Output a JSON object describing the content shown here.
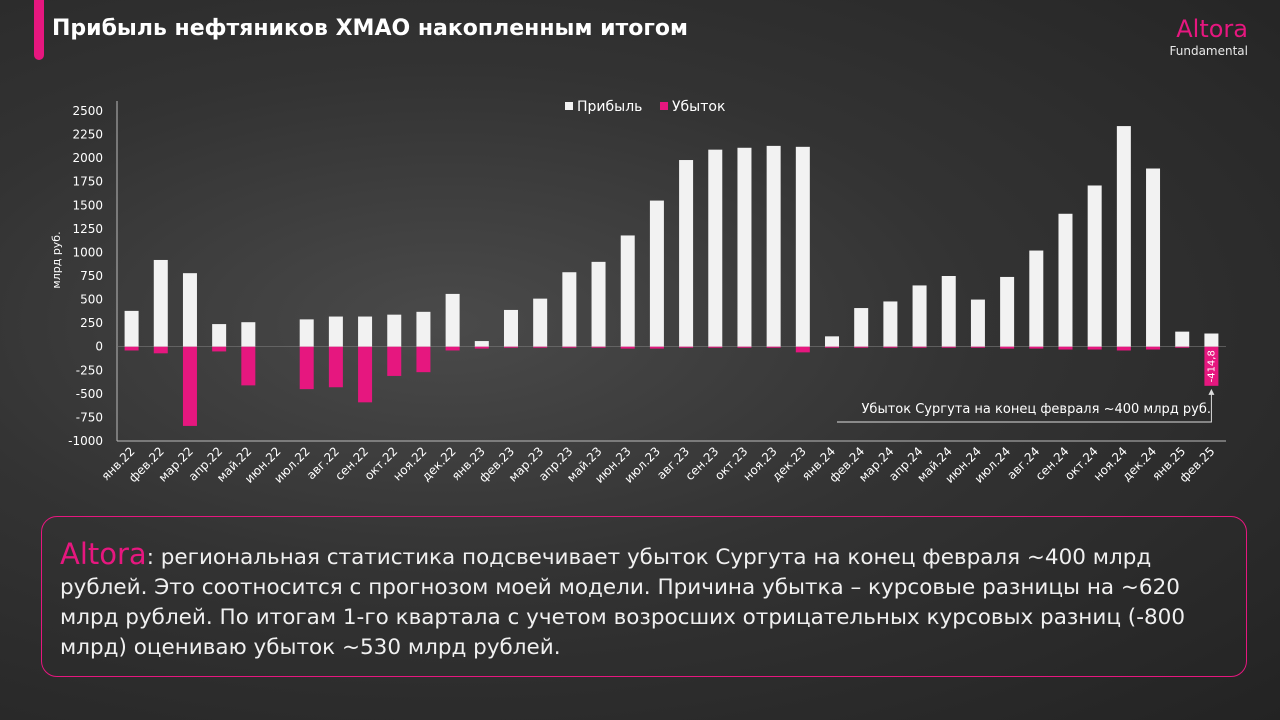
{
  "header": {
    "title": "Прибыль нефтяников ХМАО накопленным итогом",
    "brand": "Altora",
    "brand_sub": "Fundamental"
  },
  "colors": {
    "accent": "#e6177f",
    "profit": "#f2f2f2",
    "background": "#2b2b2b"
  },
  "chart_data": {
    "type": "bar",
    "ylabel": "млрд руб.",
    "ylim": [
      -1000,
      2500
    ],
    "yticks": [
      2500,
      2250,
      2000,
      1750,
      1500,
      1250,
      1000,
      750,
      500,
      250,
      0,
      -250,
      -500,
      -750,
      -1000
    ],
    "legend_position": "top",
    "categories": [
      "янв.22",
      "фев.22",
      "мар.22",
      "апр.22",
      "май.22",
      "июн.22",
      "июл.22",
      "авг.22",
      "сен.22",
      "окт.22",
      "ноя.22",
      "дек.22",
      "янв.23",
      "фев.23",
      "мар.23",
      "апр.23",
      "май.23",
      "июн.23",
      "июл.23",
      "авг.23",
      "сен.23",
      "окт.23",
      "ноя.23",
      "дек.23",
      "янв.24",
      "фев.24",
      "мар.24",
      "апр.24",
      "май.24",
      "июн.24",
      "июл.24",
      "авг.24",
      "сен.24",
      "окт.24",
      "ноя.24",
      "дек.24",
      "янв.25",
      "фев.25"
    ],
    "series": [
      {
        "name": "Прибыль",
        "color": "#f2f2f2",
        "values": [
          380,
          920,
          780,
          240,
          260,
          0,
          290,
          320,
          320,
          340,
          370,
          560,
          60,
          390,
          510,
          790,
          900,
          1180,
          1550,
          1980,
          2090,
          2110,
          2130,
          2120,
          110,
          410,
          480,
          650,
          750,
          500,
          740,
          1020,
          1410,
          1710,
          2340,
          1890,
          160,
          140
        ]
      },
      {
        "name": "Убыток",
        "color": "#e6177f",
        "values": [
          -40,
          -70,
          -840,
          -50,
          -410,
          0,
          -450,
          -430,
          -590,
          -310,
          -270,
          -40,
          -20,
          -10,
          -10,
          -10,
          -10,
          -20,
          -20,
          -10,
          -10,
          -10,
          -10,
          -60,
          -10,
          -10,
          -10,
          -10,
          -10,
          -10,
          -20,
          -20,
          -30,
          -30,
          -40,
          -30,
          -5,
          -414.8
        ]
      }
    ],
    "data_labels": [
      {
        "category": "фев.25",
        "series": "Убыток",
        "text": "-414,8"
      }
    ],
    "annotation": "Убыток Сургута на конец февраля ~400 млрд руб."
  },
  "note": {
    "brand": "Altora",
    "text": ": региональная статистика подсвечивает убыток Сургута на конец февраля ~400 млрд рублей. Это соотносится с прогнозом моей модели. Причина убытка – курсовые разницы на ~620 млрд рублей. По итогам 1-го квартала с учетом возросших отрицательных курсовых разниц (-800 млрд) оцениваю убыток ~530 млрд рублей."
  }
}
